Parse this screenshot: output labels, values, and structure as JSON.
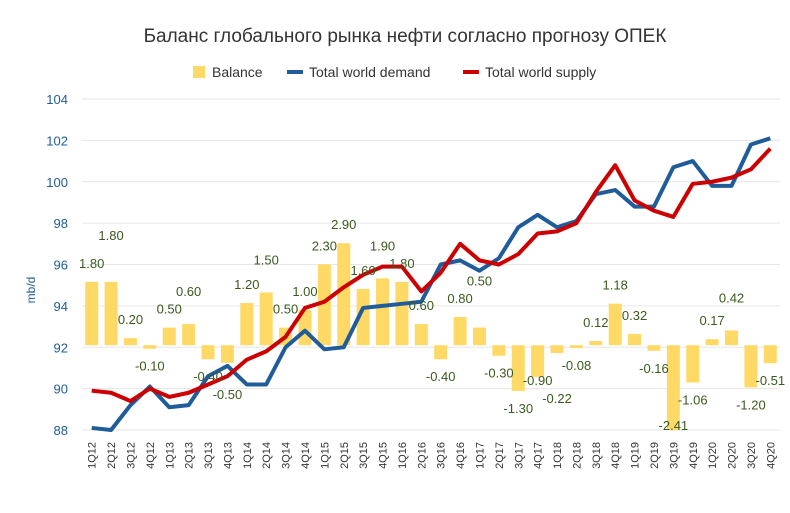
{
  "chart_data": {
    "type": "bar+line",
    "title": "Баланс глобального рынка нефти согласно прогнозу ОПЕК",
    "ylabel": "mb/d",
    "ylim": [
      88,
      104
    ],
    "yticks": [
      88,
      90,
      92,
      94,
      96,
      98,
      100,
      102,
      104
    ],
    "legend_position": "top",
    "categories": [
      "1Q12",
      "2Q12",
      "3Q12",
      "4Q12",
      "1Q13",
      "2Q13",
      "3Q13",
      "4Q13",
      "1Q14",
      "2Q14",
      "3Q14",
      "4Q14",
      "1Q15",
      "2Q15",
      "3Q15",
      "4Q15",
      "1Q16",
      "2Q16",
      "3Q16",
      "4Q16",
      "1Q17",
      "2Q17",
      "3Q17",
      "4Q17",
      "1Q18",
      "2Q18",
      "3Q18",
      "4Q18",
      "1Q19",
      "2Q19",
      "3Q19",
      "4Q19",
      "1Q20",
      "2Q20",
      "3Q20",
      "4Q20"
    ],
    "series": [
      {
        "name": "Balance",
        "type": "bar",
        "color": "#FFD966",
        "values": [
          1.8,
          1.8,
          0.2,
          -0.1,
          0.5,
          0.6,
          -0.4,
          -0.5,
          1.2,
          1.5,
          0.5,
          1.0,
          2.3,
          2.9,
          1.6,
          1.9,
          1.8,
          0.6,
          -0.4,
          0.8,
          0.5,
          -0.3,
          -1.3,
          -0.9,
          -0.22,
          -0.08,
          0.12,
          1.18,
          0.32,
          -0.16,
          -2.41,
          -1.06,
          0.17,
          0.42,
          -1.2,
          -0.51
        ],
        "labels": [
          "1.80",
          "1.80",
          "0.20",
          "-0.10",
          "0.50",
          "0.60",
          "-0.40",
          "-0.50",
          "1.20",
          "1.50",
          "0.50",
          "1.00",
          "2.30",
          "2.90",
          "1.60",
          "1.90",
          "1.80",
          "0.60",
          "-0.40",
          "0.80",
          "0.50",
          "-0.30",
          "-1.30",
          "-0.90",
          "-0.22",
          "-0.08",
          "0.12",
          "1.18",
          "0.32",
          "-0.16",
          "-2.41",
          "-1.06",
          "0.17",
          "0.42",
          "-1.20",
          "-0.51"
        ]
      },
      {
        "name": "Total world demand",
        "type": "line",
        "color": "#1F5C99",
        "values": [
          88.1,
          88.0,
          89.2,
          90.1,
          89.1,
          89.2,
          90.6,
          91.1,
          90.2,
          90.2,
          92.0,
          92.8,
          91.9,
          92.0,
          93.9,
          94.0,
          94.1,
          94.2,
          96.0,
          96.2,
          95.7,
          96.3,
          97.8,
          98.4,
          97.8,
          98.1,
          99.4,
          99.6,
          98.8,
          98.8,
          100.7,
          101.0,
          99.8,
          99.8,
          101.8,
          102.1
        ]
      },
      {
        "name": "Total world supply",
        "type": "line",
        "color": "#CC0000",
        "values": [
          89.9,
          89.8,
          89.4,
          90.0,
          89.6,
          89.8,
          90.2,
          90.6,
          91.4,
          91.8,
          92.5,
          93.9,
          94.2,
          94.9,
          95.5,
          95.9,
          95.9,
          94.7,
          95.6,
          97.0,
          96.2,
          96.0,
          96.5,
          97.5,
          97.6,
          98.0,
          99.5,
          100.8,
          99.1,
          98.6,
          98.3,
          99.9,
          100.0,
          100.2,
          100.6,
          101.6
        ]
      }
    ]
  }
}
